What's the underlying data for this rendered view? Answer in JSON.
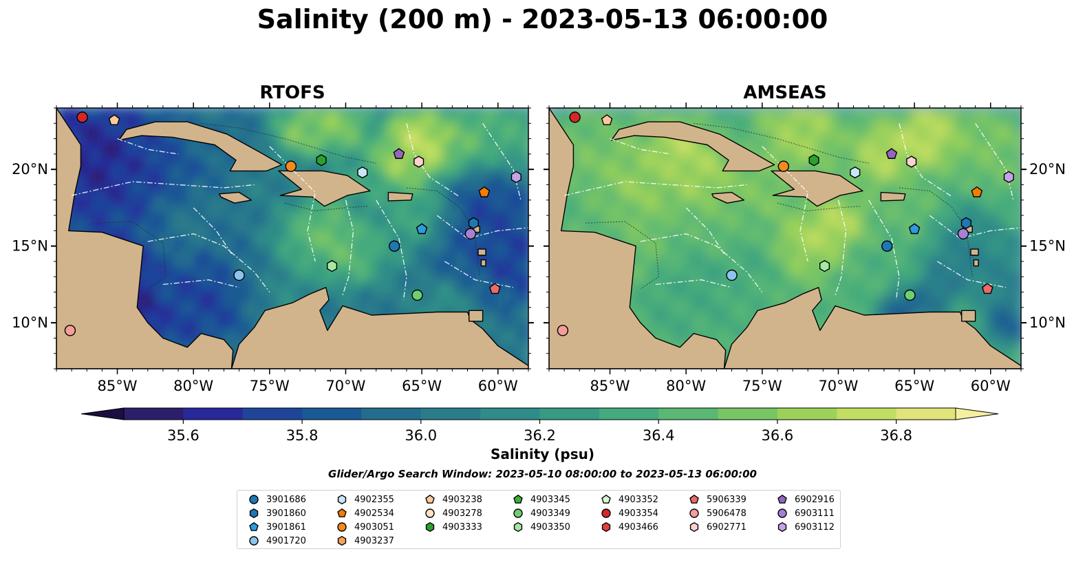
{
  "title": "Salinity (200 m) - 2023-05-13 06:00:00",
  "panels": [
    {
      "title": "RTOFS",
      "model": "rtofs"
    },
    {
      "title": "AMSEAS",
      "model": "amseas"
    }
  ],
  "map": {
    "lon_range": [
      -89,
      -58
    ],
    "lat_range": [
      7,
      24
    ],
    "lon_ticks": [
      {
        "value": -85,
        "label": "85°W"
      },
      {
        "value": -80,
        "label": "80°W"
      },
      {
        "value": -75,
        "label": "75°W"
      },
      {
        "value": -70,
        "label": "70°W"
      },
      {
        "value": -65,
        "label": "65°W"
      },
      {
        "value": -60,
        "label": "60°W"
      }
    ],
    "lat_ticks": [
      {
        "value": 20,
        "label": "20°N"
      },
      {
        "value": 15,
        "label": "15°N"
      },
      {
        "value": 10,
        "label": "10°N"
      }
    ],
    "land_color": "#d2b48c",
    "shelf_color": "#95b4de"
  },
  "colorbar": {
    "label": "Salinity (psu)",
    "min": 35.5,
    "max": 36.9,
    "step": 0.1,
    "ticks": [
      35.6,
      35.8,
      36.0,
      36.2,
      36.4,
      36.6,
      36.8
    ],
    "tick_labels": [
      "35.6",
      "35.8",
      "36.0",
      "36.2",
      "36.4",
      "36.6",
      "36.8"
    ],
    "colors": [
      "#2d1e6b",
      "#27299a",
      "#1e459a",
      "#1a5a94",
      "#236d8e",
      "#2b7c8b",
      "#2f8c88",
      "#379b83",
      "#45aa7d",
      "#5ab774",
      "#78c565",
      "#9cd25a",
      "#c2de62",
      "#e2e47b"
    ],
    "under_color": "#1c0f3f",
    "over_color": "#f5f0a0"
  },
  "search_window": "Glider/Argo Search Window: 2023-05-10 08:00:00 to 2023-05-13 06:00:00",
  "floats": [
    {
      "id": "3901686",
      "marker": "circle",
      "color": "#1f77b4",
      "lon": -66.8,
      "lat": 15.0
    },
    {
      "id": "3901860",
      "marker": "hexagon",
      "color": "#1f77b4",
      "lon": -61.6,
      "lat": 16.5
    },
    {
      "id": "3901861",
      "marker": "pentagon",
      "color": "#2c9be0",
      "lon": -65.0,
      "lat": 16.1
    },
    {
      "id": "4901720",
      "marker": "circle",
      "color": "#8cc4ef",
      "lon": -77.0,
      "lat": 13.1
    },
    {
      "id": "4902355",
      "marker": "hexagon",
      "color": "#c7e7f7",
      "lon": -68.9,
      "lat": 19.8
    },
    {
      "id": "4902534",
      "marker": "pentagon",
      "color": "#f57c00",
      "lon": -60.9,
      "lat": 18.5
    },
    {
      "id": "4903051",
      "marker": "circle",
      "color": "#f28a1c",
      "lon": -73.6,
      "lat": 20.2
    },
    {
      "id": "4903237",
      "marker": "hexagon",
      "color": "#f7a356",
      "lon": null,
      "lat": null
    },
    {
      "id": "4903238",
      "marker": "pentagon",
      "color": "#ffc89a",
      "lon": -85.2,
      "lat": 23.2
    },
    {
      "id": "4903278",
      "marker": "circle",
      "color": "#fde2c8",
      "lon": null,
      "lat": null
    },
    {
      "id": "4903333",
      "marker": "hexagon",
      "color": "#2ca02c",
      "lon": -71.6,
      "lat": 20.6
    },
    {
      "id": "4903345",
      "marker": "pentagon",
      "color": "#3bb03b",
      "lon": null,
      "lat": null
    },
    {
      "id": "4903349",
      "marker": "circle",
      "color": "#6fcf6f",
      "lon": -65.3,
      "lat": 11.8
    },
    {
      "id": "4903350",
      "marker": "hexagon",
      "color": "#a6e8a2",
      "lon": -70.9,
      "lat": 13.7
    },
    {
      "id": "4903352",
      "marker": "pentagon",
      "color": "#d8f7d2",
      "lon": null,
      "lat": null
    },
    {
      "id": "4903354",
      "marker": "circle",
      "color": "#d62728",
      "lon": -87.3,
      "lat": 23.4
    },
    {
      "id": "4903466",
      "marker": "hexagon",
      "color": "#e0403f",
      "lon": null,
      "lat": null
    },
    {
      "id": "5906339",
      "marker": "pentagon",
      "color": "#ec6a6a",
      "lon": -60.2,
      "lat": 12.2
    },
    {
      "id": "5906478",
      "marker": "circle",
      "color": "#f59d9a",
      "lon": -88.1,
      "lat": 9.5
    },
    {
      "id": "6902771",
      "marker": "hexagon",
      "color": "#fcd2cf",
      "lon": -65.2,
      "lat": 20.5
    },
    {
      "id": "6902916",
      "marker": "pentagon",
      "color": "#9467bd",
      "lon": -66.5,
      "lat": 21.0
    },
    {
      "id": "6903111",
      "marker": "circle",
      "color": "#a97fd4",
      "lon": -61.8,
      "lat": 15.8
    },
    {
      "id": "6903112",
      "marker": "hexagon",
      "color": "#c6a3e8",
      "lon": -58.8,
      "lat": 19.5
    }
  ]
}
